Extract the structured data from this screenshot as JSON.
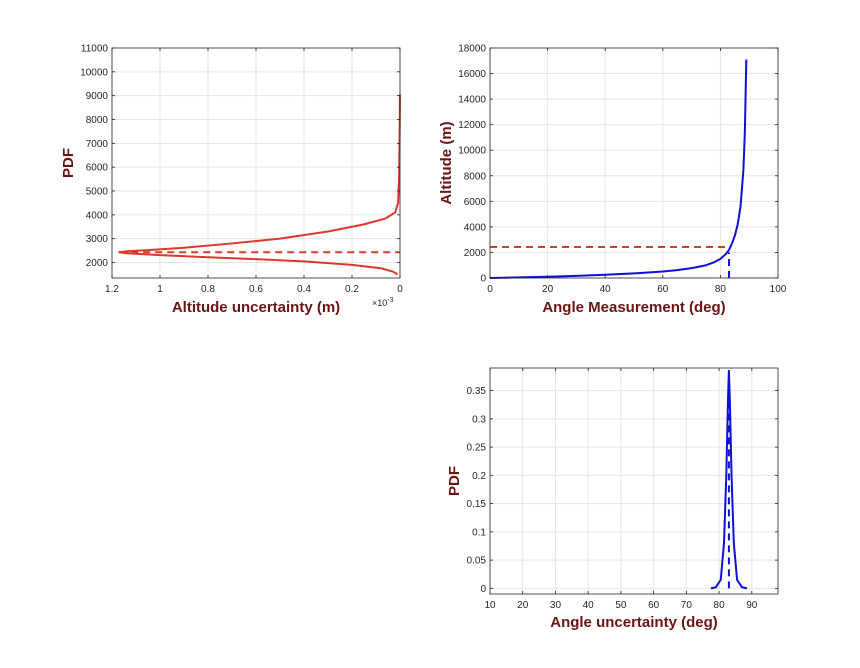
{
  "figure": {
    "background": "#ffffff"
  },
  "chart_data": [
    {
      "type": "line",
      "id": "altitude-pdf",
      "title": "",
      "xlabel": "Altitude uncertainty (m)",
      "ylabel": "PDF",
      "x_exponent_label": "×10",
      "x_exponent_power": "-3",
      "x_reversed": true,
      "xlim": [
        0,
        1.2
      ],
      "ylim": [
        1350,
        11000
      ],
      "xticks": [
        1.2,
        1,
        0.8,
        0.6,
        0.4,
        0.2,
        0
      ],
      "xtick_labels": [
        "1.2",
        "1",
        "0.8",
        "0.6",
        "0.4",
        "0.2",
        "0"
      ],
      "yticks": [
        2000,
        3000,
        4000,
        5000,
        6000,
        7000,
        8000,
        9000,
        10000,
        11000
      ],
      "ytick_labels": [
        "2000",
        "3000",
        "4000",
        "5000",
        "6000",
        "7000",
        "8000",
        "9000",
        "10000",
        "11000"
      ],
      "grid": true,
      "series": [
        {
          "style": "solid",
          "color": "#d93a2b",
          "points": [
            [
              0.0,
              9050
            ],
            [
              0.002,
              7000
            ],
            [
              0.004,
              5500
            ],
            [
              0.008,
              4500
            ],
            [
              0.02,
              4100
            ],
            [
              0.06,
              3850
            ],
            [
              0.15,
              3600
            ],
            [
              0.3,
              3300
            ],
            [
              0.5,
              3000
            ],
            [
              0.7,
              2800
            ],
            [
              0.9,
              2620
            ],
            [
              1.05,
              2520
            ],
            [
              1.14,
              2470
            ],
            [
              1.17,
              2430
            ],
            [
              1.14,
              2390
            ],
            [
              1.0,
              2310
            ],
            [
              0.8,
              2220
            ],
            [
              0.6,
              2140
            ],
            [
              0.4,
              2050
            ],
            [
              0.2,
              1900
            ],
            [
              0.08,
              1760
            ],
            [
              0.03,
              1620
            ],
            [
              0.01,
              1500
            ]
          ]
        },
        {
          "style": "dashed",
          "color": "#d93a2b",
          "points": [
            [
              1.17,
              2430
            ],
            [
              0,
              2430
            ]
          ]
        }
      ]
    },
    {
      "type": "line",
      "id": "altitude-vs-angle",
      "title": "",
      "xlabel": "Angle Measurement (deg)",
      "ylabel": "Altitude (m)",
      "xlim": [
        0,
        100
      ],
      "ylim": [
        0,
        18000
      ],
      "xticks": [
        0,
        20,
        40,
        60,
        80,
        100
      ],
      "xtick_labels": [
        "0",
        "20",
        "40",
        "60",
        "80",
        "100"
      ],
      "yticks": [
        0,
        2000,
        4000,
        6000,
        8000,
        10000,
        12000,
        14000,
        16000,
        18000
      ],
      "ytick_labels": [
        "0",
        "2000",
        "4000",
        "6000",
        "8000",
        "10000",
        "12000",
        "14000",
        "16000",
        "18000"
      ],
      "grid": true,
      "series": [
        {
          "style": "solid",
          "color": "#1010d6",
          "points": [
            [
              0,
              0
            ],
            [
              10,
              50
            ],
            [
              20,
              100
            ],
            [
              30,
              170
            ],
            [
              40,
              250
            ],
            [
              50,
              360
            ],
            [
              60,
              510
            ],
            [
              65,
              620
            ],
            [
              70,
              770
            ],
            [
              75,
              1000
            ],
            [
              78,
              1250
            ],
            [
              80,
              1500
            ],
            [
              82,
              1900
            ],
            [
              83,
              2200
            ],
            [
              84,
              2700
            ],
            [
              85,
              3300
            ],
            [
              86,
              4200
            ],
            [
              87,
              5600
            ],
            [
              88,
              8500
            ],
            [
              88.5,
              11500
            ],
            [
              89,
              17100
            ]
          ]
        },
        {
          "style": "dashed",
          "color": "#d93a2b",
          "points": [
            [
              0,
              2430
            ],
            [
              83,
              2430
            ]
          ]
        },
        {
          "style": "dashed",
          "color": "#1010d6",
          "points": [
            [
              83,
              0
            ],
            [
              83,
              2000
            ]
          ]
        }
      ]
    },
    {
      "type": "line",
      "id": "angle-pdf",
      "title": "",
      "xlabel": "Angle uncertainty (deg)",
      "ylabel": "PDF",
      "xlim": [
        10,
        98
      ],
      "ylim": [
        -0.01,
        0.39
      ],
      "xticks": [
        10,
        20,
        30,
        40,
        50,
        60,
        70,
        80,
        90
      ],
      "xtick_labels": [
        "10",
        "20",
        "30",
        "40",
        "50",
        "60",
        "70",
        "80",
        "90"
      ],
      "yticks": [
        0,
        0.05,
        0.1,
        0.15,
        0.2,
        0.25,
        0.3,
        0.35
      ],
      "ytick_labels": [
        "0",
        "0.05",
        "0.1",
        "0.15",
        "0.2",
        "0.25",
        "0.3",
        "0.35"
      ],
      "grid": true,
      "series": [
        {
          "style": "solid",
          "color": "#1010d6",
          "points": [
            [
              77.5,
              0
            ],
            [
              79,
              0.002
            ],
            [
              80.5,
              0.015
            ],
            [
              81.5,
              0.08
            ],
            [
              82.2,
              0.2
            ],
            [
              82.7,
              0.33
            ],
            [
              83,
              0.385
            ],
            [
              83.3,
              0.33
            ],
            [
              83.8,
              0.2
            ],
            [
              84.5,
              0.08
            ],
            [
              85.5,
              0.015
            ],
            [
              87,
              0.002
            ],
            [
              88.5,
              0
            ]
          ]
        },
        {
          "style": "dashed",
          "color": "#1010d6",
          "points": [
            [
              83,
              0
            ],
            [
              83,
              0.385
            ]
          ]
        }
      ]
    }
  ]
}
